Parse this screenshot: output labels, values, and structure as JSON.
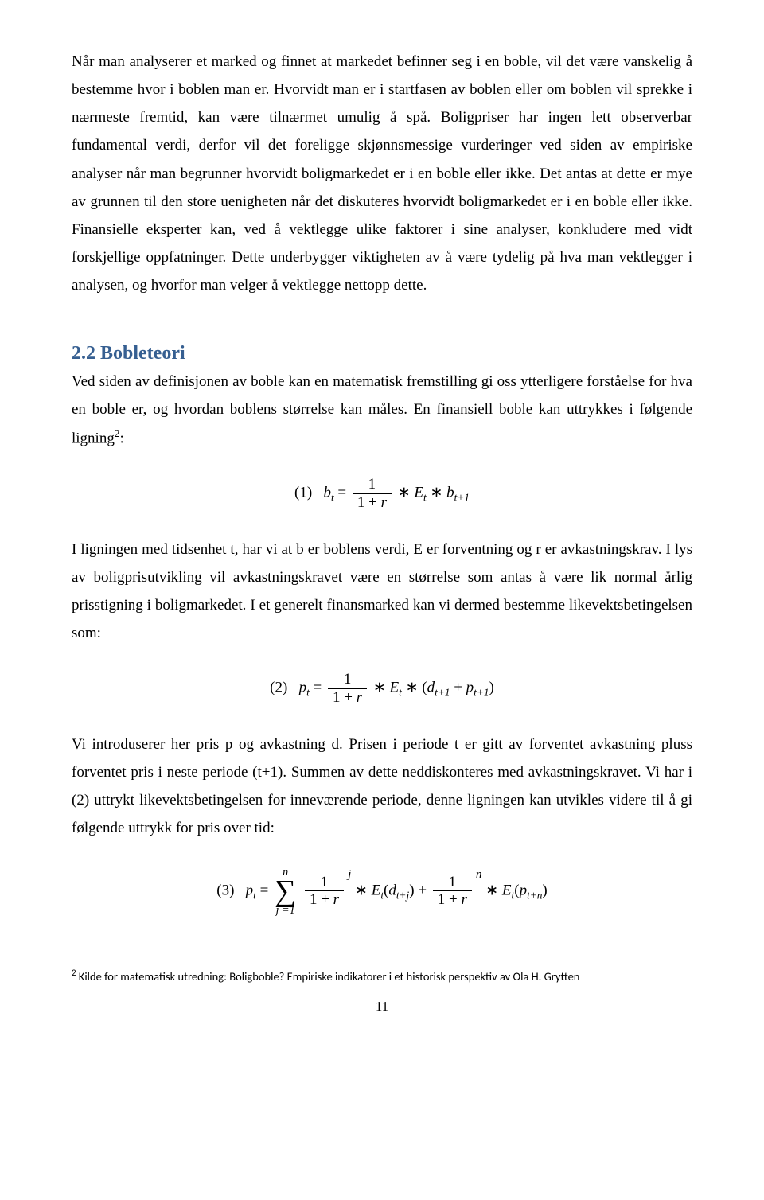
{
  "para1": "Når man analyserer et marked og finnet at markedet befinner seg i en boble, vil det være vanskelig å bestemme hvor i boblen man er. Hvorvidt man er i startfasen av boblen eller om boblen vil sprekke i nærmeste fremtid, kan være tilnærmet umulig å spå. Boligpriser har ingen lett observerbar fundamental verdi, derfor vil det foreligge skjønnsmessige vurderinger ved siden av empiriske analyser når man begrunner hvorvidt boligmarkedet er i en boble eller ikke. Det antas at dette er mye av grunnen til den store uenigheten når det diskuteres hvorvidt boligmarkedet er i en boble eller ikke. Finansielle eksperter kan, ved å vektlegge ulike faktorer i sine analyser, konkludere med vidt forskjellige oppfatninger. Dette underbygger viktigheten av å være tydelig på hva man vektlegger i analysen, og hvorfor man velger å vektlegge nettopp dette.",
  "heading": "2.2 Bobleteori",
  "para2a": "Ved siden av definisjonen av boble kan en matematisk fremstilling gi oss ytterligere forståelse for hva en boble er, og hvordan boblens størrelse kan måles. En finansiell boble kan uttrykkes i følgende ligning",
  "para2sup": "2",
  "para2b": ":",
  "para3": "I ligningen med tidsenhet t, har vi at b er boblens verdi, E er forventning og r er avkastningskrav. I lys av boligprisutvikling vil avkastningskravet være en størrelse som antas å være lik normal årlig prisstigning i boligmarkedet. I et generelt finansmarked kan vi dermed bestemme likevektsbetingelsen som:",
  "para4": "Vi introduserer her pris p og avkastning d. Prisen i periode t er gitt av forventet avkastning pluss forventet pris i neste periode (t+1). Summen av dette neddiskonteres med avkastningskravet. Vi har i (2) uttrykt likevektsbetingelsen for inneværende periode, denne ligningen kan utvikles videre til å gi følgende uttrykk for pris over tid:",
  "footnote_marker": "2",
  "footnote_text": " Kilde for matematisk utredning: Boligboble? Empiriske indikatorer i et historisk perspektiv av Ola H. Grytten",
  "page_number": "11",
  "colors": {
    "heading_color": "#365f91",
    "text_color": "#000000",
    "background": "#ffffff"
  },
  "eq1": {
    "label": "(1)",
    "lhs_var": "b",
    "lhs_sub": "t",
    "frac_num": "1",
    "frac_den_a": "1 + ",
    "frac_den_b": "r",
    "star": " ∗ ",
    "E": "E",
    "Esub": "t",
    "b2": "b",
    "b2sub": "t+1"
  },
  "eq2": {
    "label": "(2)",
    "lhs_var": "p",
    "lhs_sub": "t",
    "frac_num": "1",
    "frac_den_a": "1 + ",
    "frac_den_b": "r",
    "star": " ∗ ",
    "E": "E",
    "Esub": "t",
    "open": " ∗ (",
    "d": "d",
    "dsub": "t+1",
    "plus": " + ",
    "p2": "p",
    "p2sub": "t+1",
    "close": ")"
  },
  "eq3": {
    "label": "(3)",
    "lhs_var": "p",
    "lhs_sub": "t",
    "sum_top": "n",
    "sum_bot": "j =1",
    "frac_num": "1",
    "frac_den_a": "1 + ",
    "frac_den_b": "r",
    "pow1": "j",
    "star": " ∗ ",
    "E": "E",
    "Esub": "t",
    "open": "(",
    "d": "d",
    "dsub": "t+j",
    "close": ")",
    "plus": " + ",
    "pow2": "n",
    "p2": "p",
    "p2sub": "t+n"
  }
}
